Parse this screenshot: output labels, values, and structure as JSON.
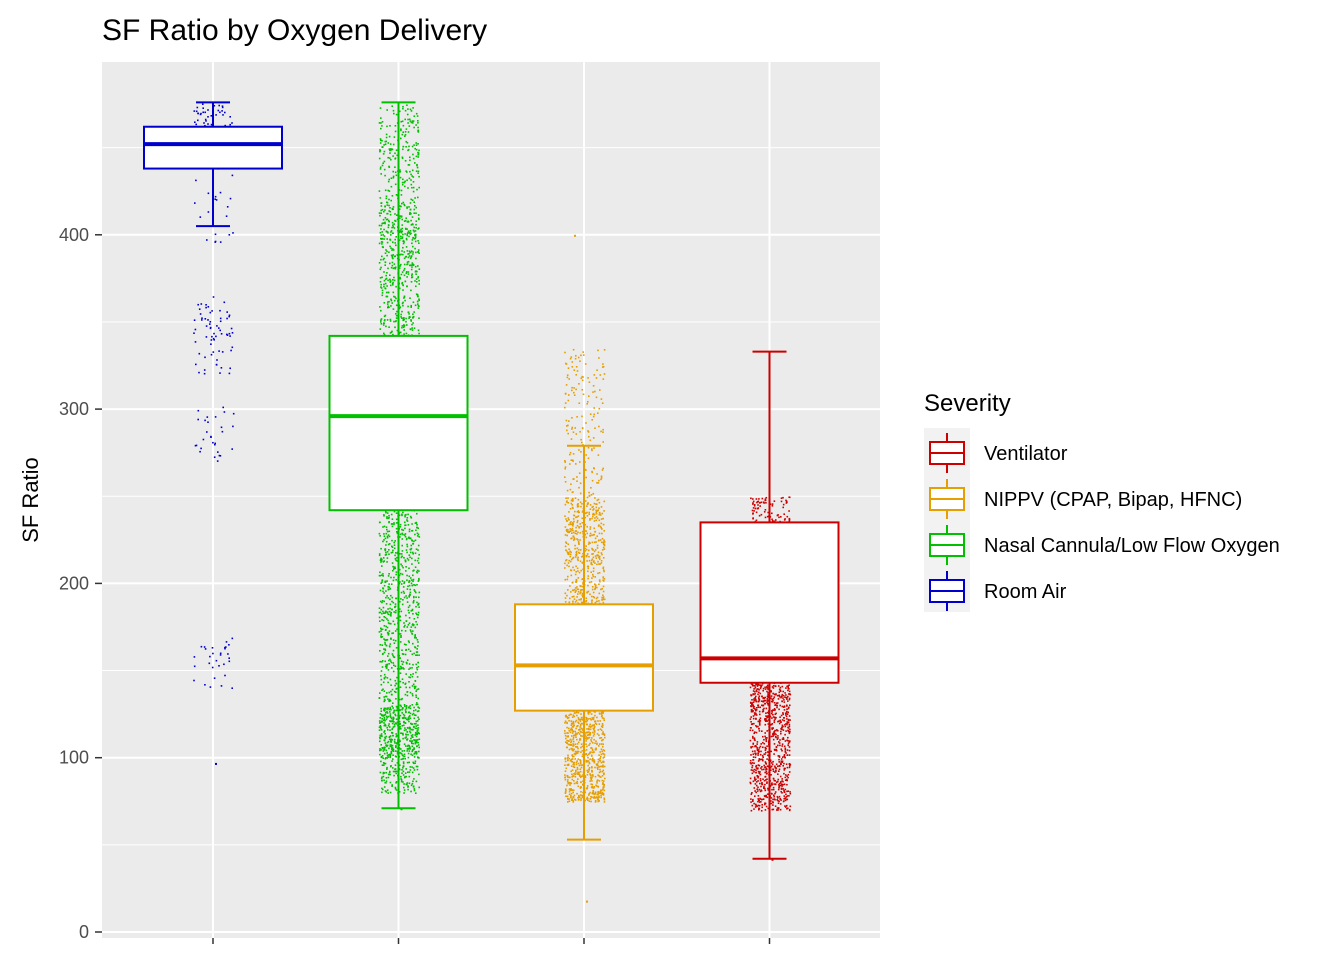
{
  "chart_data": {
    "type": "box",
    "title": "SF Ratio by Oxygen Delivery",
    "xlabel": "",
    "ylabel": "SF Ratio",
    "ylim": [
      0,
      490
    ],
    "yticks": [
      0,
      100,
      200,
      300,
      400
    ],
    "grid": true,
    "legend": {
      "title": "Severity",
      "position": "right",
      "entries": [
        "Ventilator",
        "NIPPV (CPAP, Bipap, HFNC)",
        "Nasal Cannula/Low Flow Oxygen",
        "Room Air"
      ]
    },
    "series": [
      {
        "name": "Room Air",
        "color": "#0000CD",
        "whisker_low": 405,
        "q1": 438,
        "median": 452,
        "q3": 462,
        "whisker_high": 476,
        "outlier_min": 97
      },
      {
        "name": "Nasal Cannula/Low Flow Oxygen",
        "color": "#00C000",
        "whisker_low": 71,
        "q1": 242,
        "median": 296,
        "q3": 342,
        "whisker_high": 476,
        "outlier_min": 71
      },
      {
        "name": "NIPPV (CPAP, Bipap, HFNC)",
        "color": "#E69F00",
        "whisker_low": 53,
        "q1": 127,
        "median": 153,
        "q3": 188,
        "whisker_high": 279,
        "outlier_max": 400,
        "outlier_min": 18
      },
      {
        "name": "Ventilator",
        "color": "#CC0000",
        "whisker_low": 42,
        "q1": 143,
        "median": 157,
        "q3": 235,
        "whisker_high": 333,
        "outlier_min": 42
      }
    ]
  }
}
